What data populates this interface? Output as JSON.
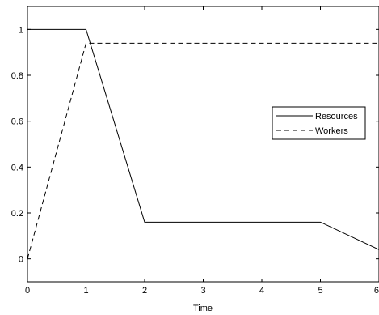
{
  "chart_data": {
    "type": "line",
    "title": "",
    "xlabel": "Time",
    "ylabel": "",
    "xlim": [
      0,
      6
    ],
    "ylim": [
      -0.1,
      1.1
    ],
    "xticks": [
      0,
      1,
      2,
      3,
      4,
      5,
      6
    ],
    "xtick_labels": [
      "0",
      "1",
      "2",
      "3",
      "4",
      "5",
      "6"
    ],
    "yticks": [
      0,
      0.2,
      0.4,
      0.6,
      0.8,
      1
    ],
    "ytick_labels": [
      "0",
      "0.2",
      "0.4",
      "0.6",
      "0.8",
      "1"
    ],
    "grid": false,
    "legend_position": "right",
    "series": [
      {
        "name": "Resources",
        "style": "solid",
        "color": "#000000",
        "x": [
          0,
          1,
          2,
          5,
          6
        ],
        "y": [
          1,
          1,
          0.16,
          0.16,
          0.04
        ]
      },
      {
        "name": "Workers",
        "style": "dashed",
        "color": "#000000",
        "x": [
          0,
          1,
          6
        ],
        "y": [
          0,
          0.94,
          0.94
        ]
      }
    ]
  }
}
